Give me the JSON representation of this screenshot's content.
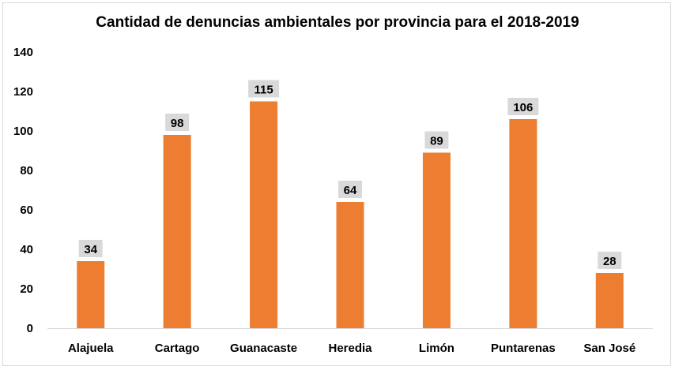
{
  "chart_data": {
    "type": "bar",
    "title": "Cantidad de denuncias ambientales por provincia para el 2018-2019",
    "categories": [
      "Alajuela",
      "Cartago",
      "Guanacaste",
      "Heredia",
      "Limón",
      "Puntarenas",
      "San José"
    ],
    "values": [
      34,
      98,
      115,
      64,
      89,
      106,
      28
    ],
    "ylim": [
      0,
      140
    ],
    "yticks": [
      0,
      20,
      40,
      60,
      80,
      100,
      120,
      140
    ],
    "xlabel": "",
    "ylabel": "",
    "grid": false,
    "legend": "none",
    "bar_color": "#ED7D31",
    "data_label_bg": "#D9D9D9"
  }
}
